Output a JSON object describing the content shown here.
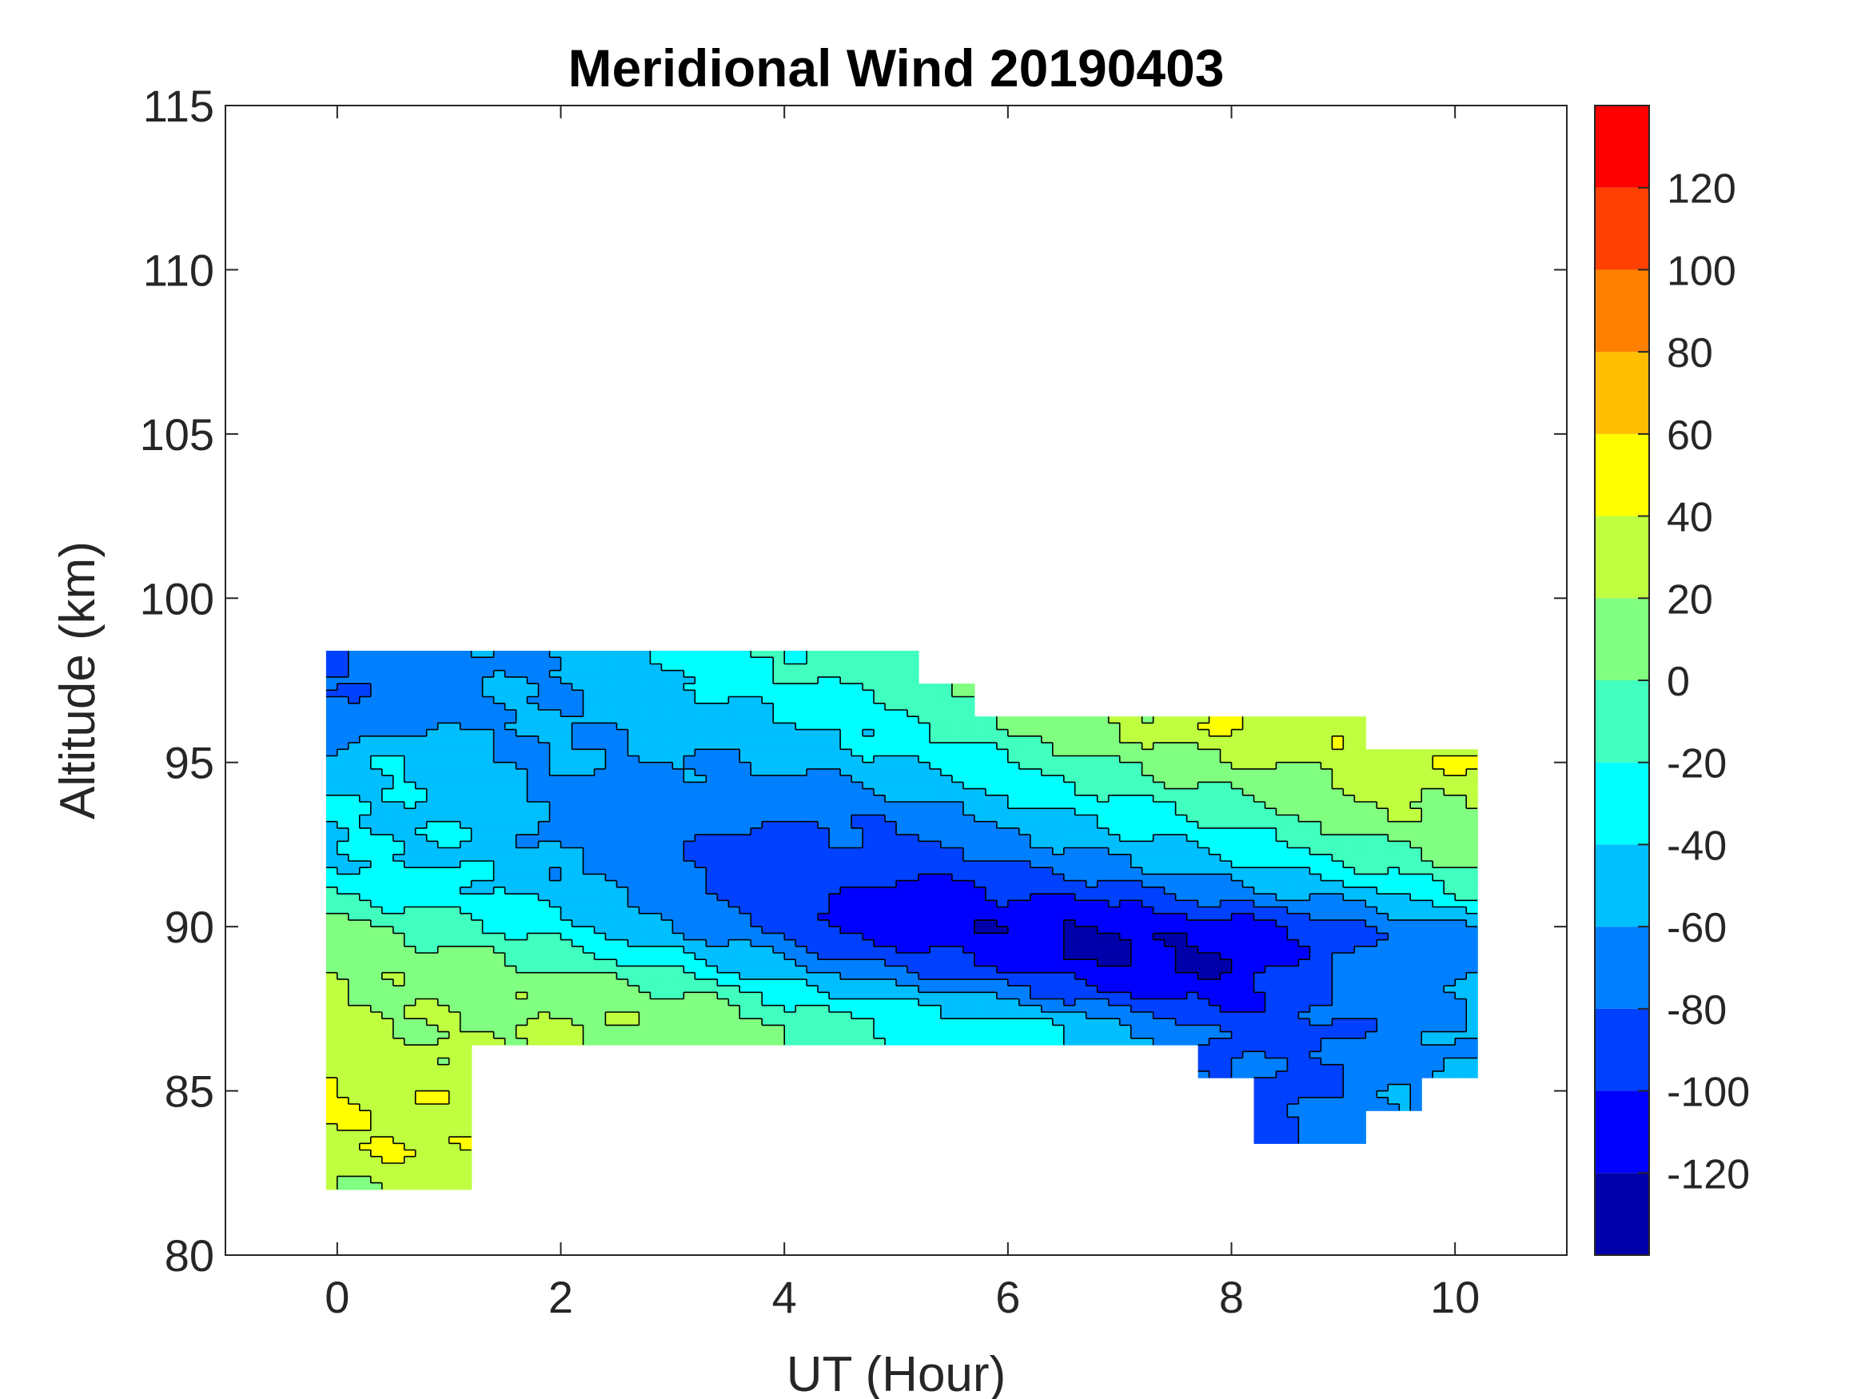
{
  "chart_data": {
    "type": "heatmap",
    "subtype": "filled-contour",
    "title": "Meridional Wind 20190403",
    "xlabel": "UT (Hour)",
    "ylabel": "Altitude (km)",
    "xlim": [
      -1,
      11
    ],
    "ylim": [
      80,
      115
    ],
    "xticks": [
      "0",
      "2",
      "4",
      "6",
      "8",
      "10"
    ],
    "xtick_values": [
      0,
      2,
      4,
      6,
      8,
      10
    ],
    "yticks": [
      "80",
      "85",
      "90",
      "95",
      "100",
      "105",
      "110",
      "115"
    ],
    "ytick_values": [
      80,
      85,
      90,
      95,
      100,
      105,
      110,
      115
    ],
    "colorbar": {
      "range": [
        -140,
        140
      ],
      "levels": [
        -140,
        -120,
        -100,
        -80,
        -60,
        -40,
        -20,
        0,
        20,
        40,
        60,
        80,
        100,
        120,
        140
      ],
      "tick_labels": [
        "120",
        "100",
        "80",
        "60",
        "40",
        "20",
        "0",
        "-20",
        "-40",
        "-60",
        "-80",
        "-100",
        "-120"
      ],
      "tick_values": [
        120,
        100,
        80,
        60,
        40,
        20,
        0,
        -20,
        -40,
        -60,
        -80,
        -100,
        -120
      ],
      "colors": [
        "#0000AA",
        "#0000FF",
        "#0040FF",
        "#0080FF",
        "#00BFFF",
        "#00FFFF",
        "#40FFBF",
        "#80FF80",
        "#BFFF40",
        "#FFFF00",
        "#FFBF00",
        "#FF8000",
        "#FF4000",
        "#FF0000"
      ]
    },
    "x": [
      0,
      0.5,
      1,
      1.5,
      2,
      2.5,
      3,
      3.5,
      4,
      4.5,
      5,
      5.5,
      6,
      6.5,
      7,
      7.5,
      8,
      8.5,
      9,
      9.5,
      10
    ],
    "altitudes": [
      98,
      97,
      96,
      95,
      94,
      93,
      92,
      91,
      90,
      89,
      88,
      87,
      86,
      85,
      84,
      83,
      82
    ],
    "values": [
      [
        -80,
        -70,
        -70,
        -60,
        -60,
        -50,
        -40,
        -30,
        -20,
        -10,
        -10,
        null,
        null,
        null,
        null,
        null,
        null,
        null,
        null,
        null,
        null
      ],
      [
        -80,
        -70,
        -70,
        -60,
        -60,
        -50,
        -50,
        -40,
        -30,
        -20,
        -20,
        0,
        null,
        null,
        null,
        null,
        null,
        null,
        null,
        null,
        null
      ],
      [
        -70,
        -60,
        -60,
        -60,
        -60,
        -60,
        -50,
        -50,
        -40,
        -40,
        -30,
        -20,
        0,
        10,
        20,
        30,
        40,
        30,
        40,
        null,
        null
      ],
      [
        -50,
        -40,
        -50,
        -60,
        -60,
        -60,
        -60,
        -60,
        -60,
        -50,
        -40,
        -30,
        -20,
        -10,
        0,
        10,
        20,
        20,
        30,
        30,
        40
      ],
      [
        -40,
        -40,
        -50,
        -60,
        -60,
        -70,
        -70,
        -70,
        -70,
        -70,
        -60,
        -50,
        -40,
        -30,
        -20,
        -10,
        0,
        10,
        20,
        30,
        20
      ],
      [
        -40,
        -40,
        -40,
        -50,
        -70,
        -70,
        -70,
        -80,
        -80,
        -80,
        -80,
        -70,
        -60,
        -50,
        -40,
        -30,
        -20,
        -10,
        0,
        10,
        10
      ],
      [
        -40,
        -40,
        -40,
        -50,
        -60,
        -70,
        -80,
        -90,
        -90,
        -90,
        -90,
        -90,
        -80,
        -70,
        -60,
        -50,
        -40,
        -30,
        -20,
        -10,
        0
      ],
      [
        -20,
        -30,
        -30,
        -40,
        -50,
        -60,
        -70,
        -90,
        -90,
        -100,
        -110,
        -110,
        -100,
        -100,
        -90,
        -80,
        -70,
        -60,
        -50,
        -40,
        -20
      ],
      [
        10,
        0,
        -10,
        -20,
        -30,
        -50,
        -60,
        -70,
        -90,
        -110,
        -110,
        -110,
        -120,
        -120,
        -120,
        -110,
        -110,
        -100,
        -90,
        -70,
        -60
      ],
      [
        20,
        10,
        10,
        0,
        -10,
        -20,
        -30,
        -50,
        -60,
        -80,
        -90,
        -100,
        -110,
        -120,
        -125,
        -125,
        -120,
        -100,
        -80,
        -70,
        -70
      ],
      [
        20,
        20,
        10,
        10,
        20,
        10,
        0,
        -10,
        -30,
        -40,
        -50,
        -60,
        -70,
        -90,
        -100,
        -110,
        -110,
        -90,
        -70,
        -70,
        -60
      ],
      [
        30,
        20,
        20,
        20,
        20,
        20,
        10,
        10,
        0,
        -10,
        -20,
        -30,
        -30,
        -40,
        -60,
        -70,
        -90,
        -90,
        -80,
        -70,
        -60
      ],
      [
        30,
        30,
        20,
        null,
        null,
        null,
        null,
        null,
        null,
        null,
        null,
        null,
        null,
        null,
        null,
        null,
        -80,
        -80,
        -80,
        -70,
        -60
      ],
      [
        40,
        30,
        40,
        null,
        null,
        null,
        null,
        null,
        null,
        null,
        null,
        null,
        null,
        null,
        null,
        null,
        null,
        -90,
        -80,
        -60,
        null
      ],
      [
        40,
        40,
        30,
        null,
        null,
        null,
        null,
        null,
        null,
        null,
        null,
        null,
        null,
        null,
        null,
        null,
        null,
        -80,
        -70,
        null,
        null
      ],
      [
        30,
        40,
        40,
        null,
        null,
        null,
        null,
        null,
        null,
        null,
        null,
        null,
        null,
        null,
        null,
        null,
        null,
        null,
        null,
        null,
        null
      ],
      [
        20,
        20,
        30,
        null,
        null,
        null,
        null,
        null,
        null,
        null,
        null,
        null,
        null,
        null,
        null,
        null,
        null,
        null,
        null,
        null,
        null
      ]
    ]
  }
}
